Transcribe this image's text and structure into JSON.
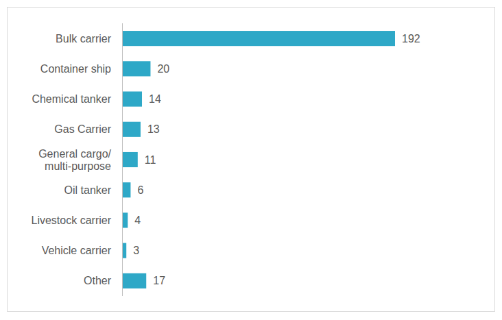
{
  "chart_data": {
    "type": "bar",
    "orientation": "horizontal",
    "categories": [
      "Bulk carrier",
      "Container ship",
      "Chemical tanker",
      "Gas Carrier",
      "General cargo/\nmulti-purpose",
      "Oil tanker",
      "Livestock carrier",
      "Vehicle carrier",
      "Other"
    ],
    "values": [
      192,
      20,
      14,
      13,
      11,
      6,
      4,
      3,
      17
    ],
    "color": "#2ea8c7",
    "xlim": [
      0,
      192
    ],
    "grid": false,
    "data_labels": true,
    "tick_labels": "y"
  }
}
